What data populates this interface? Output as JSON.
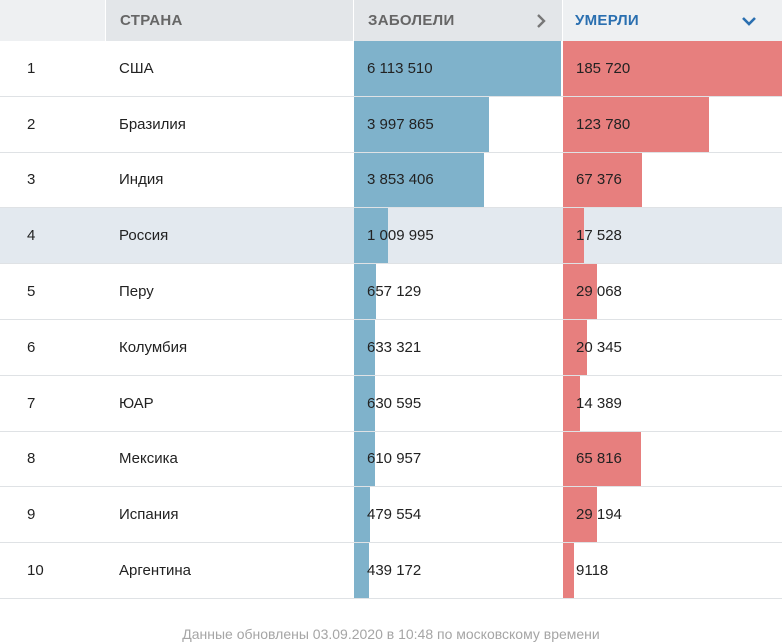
{
  "header": {
    "country": "СТРАНА",
    "cases": "ЗАБОЛЕЛИ",
    "deaths": "УМЕРЛИ",
    "cases_icon": "chevron-right-icon",
    "deaths_icon": "chevron-down-icon"
  },
  "colors": {
    "cases_bar": "#7fb2cb",
    "deaths_bar": "#e77f7e",
    "active_header": "#2a6fb0",
    "highlight_row": "#e3e9ef"
  },
  "max": {
    "cases": 6113510,
    "deaths": 185720
  },
  "rows": [
    {
      "rank": "1",
      "country": "США",
      "cases": "6 113 510",
      "deaths": "185 720",
      "cases_n": 6113510,
      "deaths_n": 185720
    },
    {
      "rank": "2",
      "country": "Бразилия",
      "cases": "3 997 865",
      "deaths": "123 780",
      "cases_n": 3997865,
      "deaths_n": 123780
    },
    {
      "rank": "3",
      "country": "Индия",
      "cases": "3 853 406",
      "deaths": "67 376",
      "cases_n": 3853406,
      "deaths_n": 67376
    },
    {
      "rank": "4",
      "country": "Россия",
      "cases": "1 009 995",
      "deaths": "17 528",
      "cases_n": 1009995,
      "deaths_n": 17528,
      "highlight": true
    },
    {
      "rank": "5",
      "country": "Перу",
      "cases": "657 129",
      "deaths": "29 068",
      "cases_n": 657129,
      "deaths_n": 29068
    },
    {
      "rank": "6",
      "country": "Колумбия",
      "cases": "633 321",
      "deaths": "20 345",
      "cases_n": 633321,
      "deaths_n": 20345
    },
    {
      "rank": "7",
      "country": "ЮАР",
      "cases": "630 595",
      "deaths": "14 389",
      "cases_n": 630595,
      "deaths_n": 14389
    },
    {
      "rank": "8",
      "country": "Мексика",
      "cases": "610 957",
      "deaths": "65 816",
      "cases_n": 610957,
      "deaths_n": 65816
    },
    {
      "rank": "9",
      "country": "Испания",
      "cases": "479 554",
      "deaths": "29 194",
      "cases_n": 479554,
      "deaths_n": 29194
    },
    {
      "rank": "10",
      "country": "Аргентина",
      "cases": "439 172",
      "deaths": "9118",
      "cases_n": 439172,
      "deaths_n": 9118
    }
  ],
  "footer": "Данные обновлены 03.09.2020 в 10:48 по московскому времени"
}
